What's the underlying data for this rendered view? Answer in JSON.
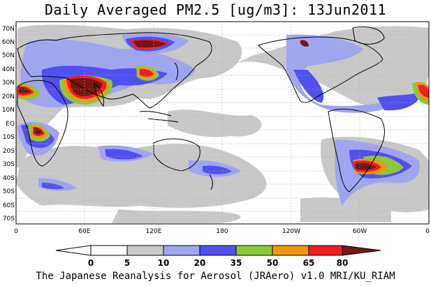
{
  "title": "Daily Averaged PM2.5 [ug/m3]: 13Jun2011",
  "footer": "The Japanese Reanalysis for Aerosol (JRAero) v1.0 MRI/KU_RIAM",
  "lat_ticks": [
    "70N",
    "60N",
    "50N",
    "40N",
    "30N",
    "20N",
    "10N",
    "EQ",
    "10S",
    "20S",
    "30S",
    "40S",
    "50S",
    "60S",
    "70S"
  ],
  "lon_ticks": [
    "0",
    "60E",
    "120E",
    "180",
    "120W",
    "60W",
    "0"
  ],
  "colorbar": {
    "levels": [
      "0",
      "5",
      "10",
      "20",
      "35",
      "50",
      "65",
      "80"
    ],
    "colors": [
      "#ffffff",
      "#c8c8c8",
      "#a0a5f0",
      "#5050f0",
      "#8cc83c",
      "#f0960a",
      "#f01e1e",
      "#781414"
    ]
  },
  "colors": {
    "ocean": "#ffffff",
    "coast": "#000000",
    "gray": "#c8c8c8",
    "lightblue": "#a0a5f0",
    "blue": "#5050f0",
    "green": "#8cc83c",
    "orange": "#f0960a",
    "red": "#f01e1e",
    "darkred": "#781414"
  }
}
